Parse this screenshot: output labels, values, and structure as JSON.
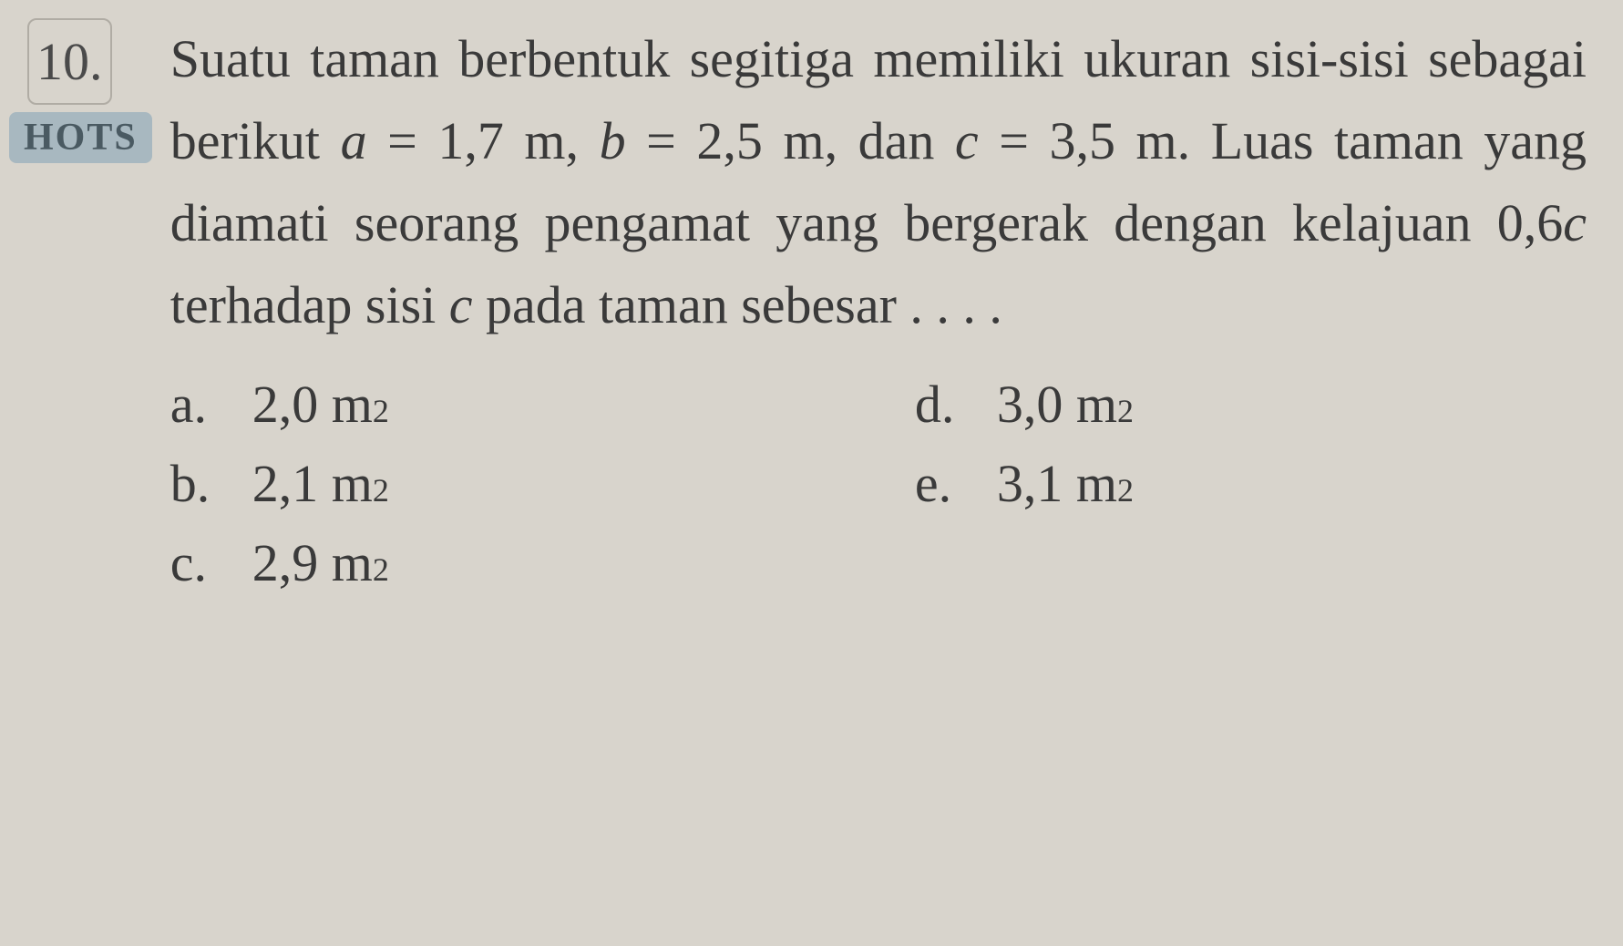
{
  "question": {
    "number": "10.",
    "badge": "HOTS",
    "text_parts": {
      "p1": "Suatu taman berbentuk segitiga memiliki ukuran sisi-sisi sebagai berikut ",
      "var_a": "a",
      "eq1": " = 1,7 m, ",
      "var_b": "b",
      "eq2": " = 2,5 m, dan ",
      "var_c": "c",
      "eq3": " = 3,5 m. Luas taman yang diamati seorang pengamat yang bergerak dengan kelajuan 0,6",
      "var_c2": "c",
      "p2": " terhadap sisi ",
      "var_c3": "c",
      "p3": " pada taman sebesar . . . ."
    }
  },
  "options": {
    "a": {
      "letter": "a.",
      "value": "2,0 m",
      "exp": "2"
    },
    "b": {
      "letter": "b.",
      "value": "2,1 m",
      "exp": "2"
    },
    "c": {
      "letter": "c.",
      "value": "2,9 m",
      "exp": "2"
    },
    "d": {
      "letter": "d.",
      "value": "3,0 m",
      "exp": "2"
    },
    "e": {
      "letter": "e.",
      "value": "3,1 m",
      "exp": "2"
    }
  },
  "styling": {
    "background_color": "#d8d4cc",
    "text_color": "#3a3a3a",
    "badge_bg": "#a8b8c0",
    "badge_text": "#4a5a62",
    "font_size_main": 58,
    "font_size_sup": 36,
    "line_height": 1.55,
    "font_family": "Georgia, Times New Roman, serif"
  }
}
